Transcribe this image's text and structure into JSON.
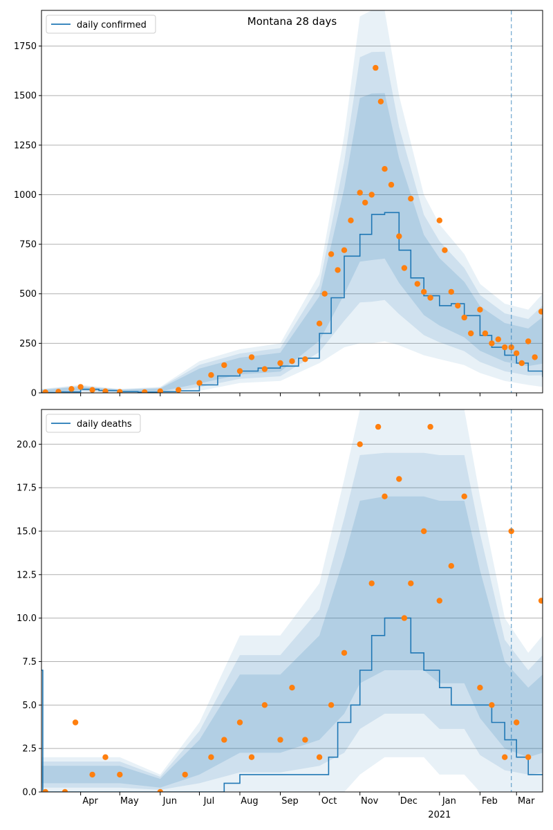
{
  "chart_data": [
    {
      "type": "line",
      "title": "Montana 28 days",
      "xlabel": "",
      "ylabel": "",
      "ylim": [
        0,
        1930
      ],
      "y_ticks": [
        "0",
        "250",
        "500",
        "750",
        "1000",
        "1250",
        "1500",
        "1750"
      ],
      "y_tick_values": [
        0,
        250,
        500,
        750,
        1000,
        1250,
        1500,
        1750
      ],
      "grid": "horizontal",
      "legend_position": "top-left",
      "colors": {
        "line": "#1f77b4",
        "points": "#ff7f0e",
        "band": "#1f77b4",
        "marker_line": "#1f77b4"
      },
      "series": [
        {
          "name": "daily confirmed",
          "kind": "line",
          "x": [
            "2020-03-02",
            "2020-03-16",
            "2020-04-01",
            "2020-04-15",
            "2020-05-01",
            "2020-05-15",
            "2020-06-01",
            "2020-06-15",
            "2020-07-01",
            "2020-07-15",
            "2020-08-01",
            "2020-08-15",
            "2020-09-01",
            "2020-09-15",
            "2020-10-01",
            "2020-10-10",
            "2020-10-20",
            "2020-11-01",
            "2020-11-10",
            "2020-11-20",
            "2020-12-01",
            "2020-12-10",
            "2020-12-20",
            "2021-01-01",
            "2021-01-10",
            "2021-01-20",
            "2021-02-01",
            "2021-02-10",
            "2021-02-20",
            "2021-03-01",
            "2021-03-10",
            "2021-03-21"
          ],
          "values": [
            2,
            5,
            18,
            12,
            6,
            4,
            6,
            10,
            40,
            85,
            110,
            125,
            135,
            175,
            300,
            480,
            690,
            800,
            900,
            910,
            720,
            580,
            490,
            440,
            450,
            390,
            290,
            230,
            190,
            150,
            110,
            80
          ]
        },
        {
          "name": "",
          "kind": "band",
          "x": [
            "2020-03-02",
            "2020-04-01",
            "2020-05-01",
            "2020-06-01",
            "2020-07-01",
            "2020-08-01",
            "2020-09-01",
            "2020-10-01",
            "2020-10-20",
            "2020-11-01",
            "2020-11-10",
            "2020-11-20",
            "2020-12-01",
            "2020-12-20",
            "2021-01-01",
            "2021-01-20",
            "2021-02-01",
            "2021-02-20",
            "2021-03-10",
            "2021-03-21"
          ],
          "lower": [
            0,
            5,
            0,
            0,
            10,
            50,
            60,
            150,
            230,
            250,
            250,
            260,
            240,
            190,
            170,
            140,
            100,
            60,
            40,
            30
          ],
          "upper": [
            20,
            40,
            20,
            30,
            160,
            220,
            250,
            600,
            1300,
            1900,
            1930,
            1930,
            1500,
            1000,
            850,
            700,
            550,
            450,
            420,
            500
          ]
        },
        {
          "name": "",
          "kind": "scatter",
          "x": [
            "2020-03-05",
            "2020-03-15",
            "2020-03-25",
            "2020-04-01",
            "2020-04-10",
            "2020-04-20",
            "2020-05-01",
            "2020-05-20",
            "2020-06-01",
            "2020-06-15",
            "2020-07-01",
            "2020-07-10",
            "2020-07-20",
            "2020-08-01",
            "2020-08-10",
            "2020-08-20",
            "2020-09-01",
            "2020-09-10",
            "2020-09-20",
            "2020-10-01",
            "2020-10-05",
            "2020-10-10",
            "2020-10-15",
            "2020-10-20",
            "2020-10-25",
            "2020-11-01",
            "2020-11-05",
            "2020-11-10",
            "2020-11-13",
            "2020-11-17",
            "2020-11-20",
            "2020-11-25",
            "2020-12-01",
            "2020-12-05",
            "2020-12-10",
            "2020-12-15",
            "2020-12-20",
            "2020-12-25",
            "2021-01-01",
            "2021-01-05",
            "2021-01-10",
            "2021-01-15",
            "2021-01-20",
            "2021-01-25",
            "2021-02-01",
            "2021-02-05",
            "2021-02-10",
            "2021-02-15",
            "2021-02-20",
            "2021-02-25",
            "2021-03-01",
            "2021-03-05",
            "2021-03-10",
            "2021-03-15",
            "2021-03-20"
          ],
          "values": [
            3,
            6,
            20,
            30,
            15,
            8,
            5,
            4,
            8,
            15,
            50,
            90,
            140,
            110,
            180,
            120,
            150,
            160,
            170,
            350,
            500,
            700,
            620,
            720,
            870,
            1010,
            960,
            1000,
            1640,
            1470,
            1130,
            1050,
            790,
            630,
            980,
            550,
            510,
            480,
            870,
            720,
            510,
            440,
            380,
            300,
            420,
            300,
            250,
            270,
            230,
            230,
            200,
            150,
            260,
            180,
            410
          ]
        }
      ]
    },
    {
      "type": "line",
      "title": "",
      "xlabel": "",
      "ylabel": "",
      "ylim": [
        0,
        22
      ],
      "y_ticks": [
        "0.0",
        "2.5",
        "5.0",
        "7.5",
        "10.0",
        "12.5",
        "15.0",
        "17.5",
        "20.0"
      ],
      "y_tick_values": [
        0,
        2.5,
        5,
        7.5,
        10,
        12.5,
        15,
        17.5,
        20
      ],
      "x_ticks": [
        "Apr",
        "May",
        "Jun",
        "Jul",
        "Aug",
        "Sep",
        "Oct",
        "Nov",
        "Dec",
        "Jan",
        "Feb",
        "Mar"
      ],
      "x_tick_dates": [
        "2020-04-01",
        "2020-05-01",
        "2020-06-01",
        "2020-07-01",
        "2020-08-01",
        "2020-09-01",
        "2020-10-01",
        "2020-11-01",
        "2020-12-01",
        "2021-01-01",
        "2021-02-01",
        "2021-03-01"
      ],
      "x_extra_label": "2021",
      "grid": "horizontal",
      "legend_position": "top-left",
      "series": [
        {
          "name": "daily deaths",
          "kind": "line",
          "x": [
            "2020-03-02",
            "2020-03-03",
            "2020-07-13",
            "2020-07-20",
            "2020-08-01",
            "2020-09-01",
            "2020-10-01",
            "2020-10-08",
            "2020-10-15",
            "2020-10-25",
            "2020-11-01",
            "2020-11-10",
            "2020-11-20",
            "2020-12-01",
            "2020-12-10",
            "2020-12-20",
            "2021-01-01",
            "2021-01-10",
            "2021-01-20",
            "2021-02-01",
            "2021-02-10",
            "2021-02-20",
            "2021-03-01",
            "2021-03-10",
            "2021-03-21"
          ],
          "values": [
            7,
            0,
            0,
            0.5,
            1,
            1,
            1,
            2,
            4,
            5,
            7,
            9,
            10,
            10,
            8,
            7,
            6,
            5,
            5,
            5,
            4,
            3,
            2,
            1,
            1
          ]
        },
        {
          "name": "",
          "kind": "band",
          "x": [
            "2020-03-02",
            "2020-04-01",
            "2020-05-01",
            "2020-06-01",
            "2020-07-01",
            "2020-08-01",
            "2020-09-01",
            "2020-10-01",
            "2020-10-20",
            "2020-11-01",
            "2020-11-20",
            "2020-12-01",
            "2020-12-20",
            "2021-01-01",
            "2021-01-20",
            "2021-02-01",
            "2021-02-20",
            "2021-03-10",
            "2021-03-21"
          ],
          "lower": [
            0,
            0,
            0,
            0,
            0,
            0,
            0,
            0,
            0,
            1,
            2,
            2,
            2,
            1,
            1,
            0,
            0,
            0,
            0
          ],
          "upper": [
            2,
            2,
            2,
            1,
            4,
            9,
            9,
            12,
            18,
            22,
            22,
            22,
            22,
            22,
            22,
            17,
            10,
            8,
            9
          ]
        },
        {
          "name": "",
          "kind": "scatter",
          "x": [
            "2020-03-05",
            "2020-03-20",
            "2020-03-28",
            "2020-04-10",
            "2020-04-20",
            "2020-05-01",
            "2020-06-01",
            "2020-06-20",
            "2020-07-10",
            "2020-07-20",
            "2020-08-01",
            "2020-08-10",
            "2020-08-20",
            "2020-09-01",
            "2020-09-10",
            "2020-09-20",
            "2020-10-01",
            "2020-10-10",
            "2020-10-20",
            "2020-11-01",
            "2020-11-10",
            "2020-11-15",
            "2020-11-20",
            "2020-12-01",
            "2020-12-05",
            "2020-12-10",
            "2020-12-20",
            "2020-12-25",
            "2021-01-01",
            "2021-01-10",
            "2021-01-20",
            "2021-02-01",
            "2021-02-10",
            "2021-02-20",
            "2021-02-25",
            "2021-03-01",
            "2021-03-10",
            "2021-03-20"
          ],
          "values": [
            0,
            0,
            4,
            1,
            2,
            1,
            0,
            1,
            2,
            3,
            4,
            2,
            5,
            3,
            6,
            3,
            2,
            5,
            8,
            20,
            12,
            21,
            17,
            18,
            10,
            12,
            15,
            21,
            11,
            13,
            17,
            6,
            5,
            2,
            15,
            4,
            2,
            11
          ]
        }
      ],
      "vertical_marker": "2021-02-25"
    }
  ]
}
